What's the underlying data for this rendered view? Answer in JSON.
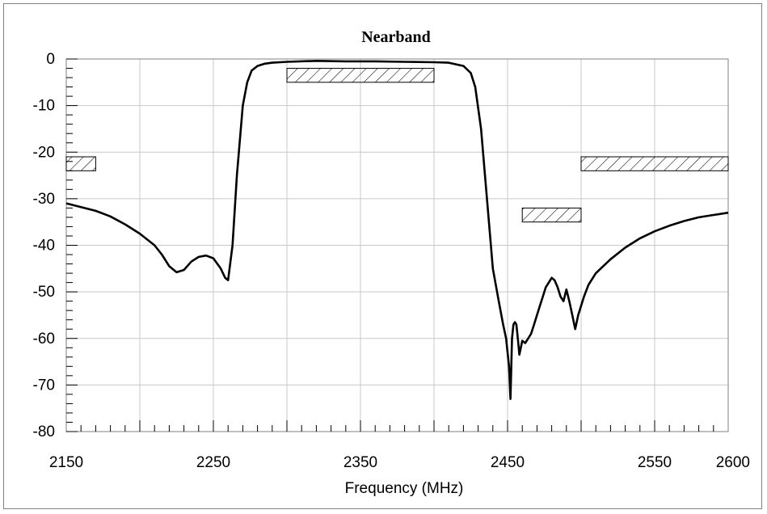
{
  "chart_data": {
    "type": "line",
    "title": "Nearband",
    "xlabel": "Frequency (MHz)",
    "ylabel": "",
    "xlim": [
      2150,
      2600
    ],
    "ylim": [
      -80,
      0
    ],
    "x_ticks": [
      2150,
      2250,
      2350,
      2450,
      2550,
      2600
    ],
    "x_tick_labels": [
      "2150",
      "2250",
      "2350",
      "2450",
      "2550",
      "2600"
    ],
    "y_ticks": [
      0,
      -10,
      -20,
      -30,
      -40,
      -50,
      -60,
      -70,
      -80
    ],
    "y_tick_labels": [
      "0",
      "-10",
      "-20",
      "-30",
      "-40",
      "-50",
      "-60",
      "-70",
      "-80"
    ],
    "grid": true,
    "series": [
      {
        "color": "#000000",
        "x": [
          2150,
          2160,
          2170,
          2180,
          2190,
          2200,
          2210,
          2215,
          2220,
          2225,
          2230,
          2235,
          2240,
          2245,
          2250,
          2255,
          2258,
          2260,
          2263,
          2266,
          2270,
          2273,
          2276,
          2280,
          2285,
          2290,
          2300,
          2320,
          2340,
          2360,
          2380,
          2400,
          2410,
          2420,
          2425,
          2428,
          2432,
          2436,
          2440,
          2444,
          2447,
          2449,
          2451,
          2452,
          2453,
          2454,
          2455,
          2456,
          2457,
          2458,
          2459,
          2460,
          2462,
          2464,
          2466,
          2468,
          2470,
          2472,
          2474,
          2476,
          2478,
          2480,
          2482,
          2484,
          2486,
          2488,
          2490,
          2492,
          2494,
          2496,
          2498,
          2500,
          2502,
          2505,
          2510,
          2520,
          2530,
          2540,
          2550,
          2560,
          2570,
          2580,
          2590,
          2600
        ],
        "values": [
          -31,
          -31.8,
          -32.6,
          -33.8,
          -35.5,
          -37.5,
          -40,
          -42,
          -44.5,
          -45.8,
          -45.3,
          -43.5,
          -42.5,
          -42.2,
          -42.8,
          -45,
          -47,
          -47.5,
          -40,
          -25,
          -10,
          -5,
          -2.5,
          -1.5,
          -1,
          -0.8,
          -0.6,
          -0.4,
          -0.5,
          -0.5,
          -0.6,
          -0.7,
          -0.8,
          -1.5,
          -3,
          -6,
          -15,
          -30,
          -45,
          -52,
          -57,
          -60,
          -66,
          -73,
          -60,
          -57,
          -56.5,
          -57,
          -60,
          -63.5,
          -62,
          -60.5,
          -61,
          -60,
          -59,
          -57,
          -55,
          -53,
          -51,
          -49,
          -48,
          -47,
          -47.5,
          -49,
          -51,
          -52,
          -49.5,
          -52,
          -55,
          -58,
          -55,
          -53,
          -51,
          -48.5,
          -46,
          -43,
          -40.5,
          -38.5,
          -37,
          -35.8,
          -34.8,
          -34,
          -33.5,
          -33
        ]
      }
    ],
    "spec_masks": [
      {
        "x_range": [
          2150,
          2170
        ],
        "y_range": [
          -24,
          -21
        ]
      },
      {
        "x_range": [
          2300,
          2400
        ],
        "y_range": [
          -5,
          -2
        ]
      },
      {
        "x_range": [
          2460,
          2500
        ],
        "y_range": [
          -35,
          -32
        ]
      },
      {
        "x_range": [
          2500,
          2600
        ],
        "y_range": [
          -24,
          -21
        ]
      }
    ]
  }
}
